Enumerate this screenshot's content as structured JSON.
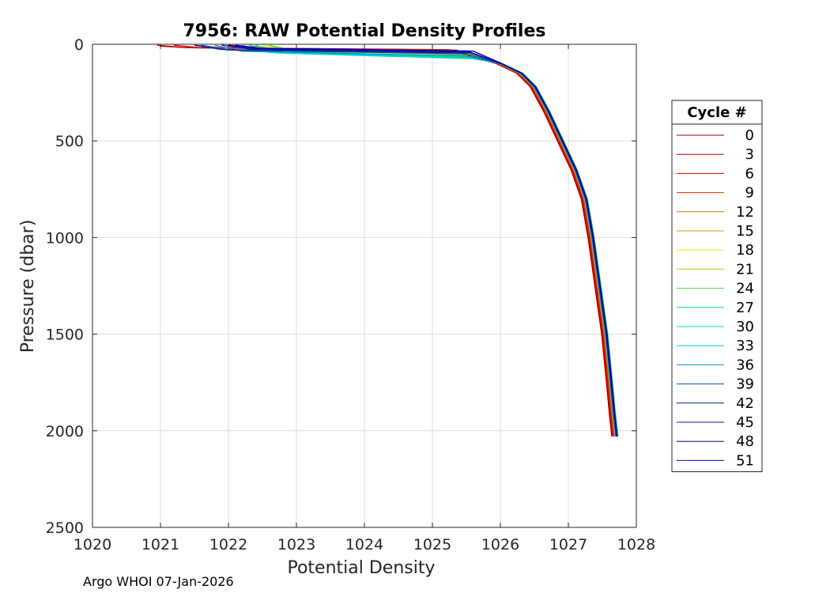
{
  "chart_data": {
    "type": "line",
    "title": "7956: RAW Potential Density Profiles",
    "xlabel": "Potential Density",
    "ylabel": "Pressure (dbar)",
    "xlim": [
      1020,
      1028
    ],
    "ylim": [
      0,
      2500
    ],
    "y_reversed": true,
    "grid": true,
    "xticks": [
      1020,
      1021,
      1022,
      1023,
      1024,
      1025,
      1026,
      1027,
      1028
    ],
    "yticks": [
      0,
      500,
      1000,
      1500,
      2000,
      2500
    ],
    "legend": {
      "title": "Cycle #",
      "placement": "outside-right",
      "entries": [
        "0",
        "3",
        "6",
        "9",
        "12",
        "15",
        "18",
        "21",
        "24",
        "27",
        "30",
        "33",
        "36",
        "39",
        "42",
        "45",
        "48",
        "51"
      ],
      "colors": [
        "#8b0000",
        "#c00000",
        "#e00000",
        "#e03000",
        "#c87800",
        "#c8a000",
        "#f0f000",
        "#a0e000",
        "#40e040",
        "#00e070",
        "#00e0b0",
        "#00c8e0",
        "#0090c0",
        "#0050b0",
        "#0020a0",
        "#1010a0",
        "#000080",
        "#0000c0"
      ]
    },
    "series": [
      {
        "name": "cycle 0",
        "color": "#8b0000",
        "offset": -0.06,
        "top_x": 1021.0,
        "top_p": 10,
        "mld": 30
      },
      {
        "name": "cycle 3",
        "color": "#c00000",
        "offset": -0.05,
        "top_x": 1020.95,
        "top_p": 5,
        "mld": 28
      },
      {
        "name": "cycle 6",
        "color": "#e00000",
        "offset": -0.04,
        "top_x": 1021.2,
        "top_p": 5,
        "mld": 30
      },
      {
        "name": "cycle 9",
        "color": "#e03000",
        "offset": -0.03,
        "top_x": 1021.5,
        "top_p": 5,
        "mld": 30
      },
      {
        "name": "cycle 12",
        "color": "#c87800",
        "offset": -0.02,
        "top_x": 1022.0,
        "top_p": 5,
        "mld": 35
      },
      {
        "name": "cycle 15",
        "color": "#c8a000",
        "offset": -0.01,
        "top_x": 1022.3,
        "top_p": 5,
        "mld": 40
      },
      {
        "name": "cycle 18",
        "color": "#f0f000",
        "offset": 0.0,
        "top_x": 1022.5,
        "top_p": 5,
        "mld": 45
      },
      {
        "name": "cycle 21",
        "color": "#a0e000",
        "offset": 0.01,
        "top_x": 1022.6,
        "top_p": 5,
        "mld": 55
      },
      {
        "name": "cycle 24",
        "color": "#40e040",
        "offset": 0.02,
        "top_x": 1022.6,
        "top_p": 5,
        "mld": 65
      },
      {
        "name": "cycle 27",
        "color": "#00e070",
        "offset": 0.03,
        "top_x": 1022.4,
        "top_p": 5,
        "mld": 70
      },
      {
        "name": "cycle 30",
        "color": "#00e0b0",
        "offset": 0.02,
        "top_x": 1022.3,
        "top_p": 5,
        "mld": 75
      },
      {
        "name": "cycle 33",
        "color": "#00c8e0",
        "offset": 0.01,
        "top_x": 1022.2,
        "top_p": 5,
        "mld": 70
      },
      {
        "name": "cycle 36",
        "color": "#0090c0",
        "offset": 0.0,
        "top_x": 1021.8,
        "top_p": 5,
        "mld": 60
      },
      {
        "name": "cycle 39",
        "color": "#0050b0",
        "offset": 0.0,
        "top_x": 1021.6,
        "top_p": 5,
        "mld": 50
      },
      {
        "name": "cycle 42",
        "color": "#0020a0",
        "offset": 0.01,
        "top_x": 1021.5,
        "top_p": 5,
        "mld": 45
      },
      {
        "name": "cycle 45",
        "color": "#1010a0",
        "offset": 0.01,
        "top_x": 1021.9,
        "top_p": 5,
        "mld": 40
      },
      {
        "name": "cycle 48",
        "color": "#000080",
        "offset": 0.02,
        "top_x": 1022.0,
        "top_p": 5,
        "mld": 35
      },
      {
        "name": "cycle 51",
        "color": "#0000c0",
        "offset": 0.02,
        "top_x": 1022.1,
        "top_p": 5,
        "mld": 35
      }
    ],
    "base_profile": [
      [
        1026.0,
        100
      ],
      [
        1026.3,
        150
      ],
      [
        1026.5,
        220
      ],
      [
        1026.7,
        350
      ],
      [
        1026.9,
        500
      ],
      [
        1027.1,
        650
      ],
      [
        1027.25,
        800
      ],
      [
        1027.35,
        1000
      ],
      [
        1027.45,
        1250
      ],
      [
        1027.55,
        1500
      ],
      [
        1027.62,
        1750
      ],
      [
        1027.66,
        1900
      ],
      [
        1027.7,
        2030
      ]
    ]
  },
  "footer": "Argo WHOI 07-Jan-2026"
}
